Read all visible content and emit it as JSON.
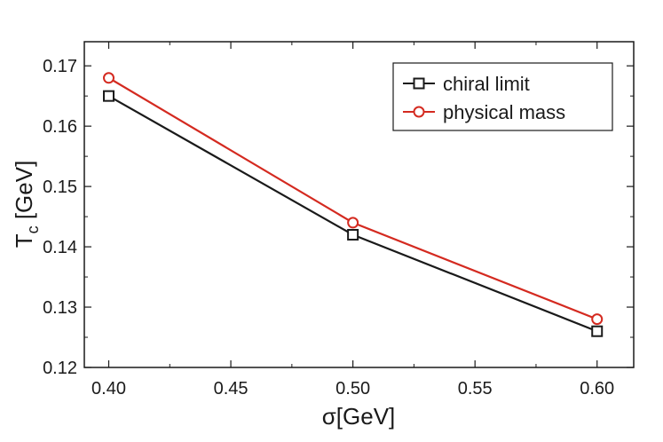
{
  "chart_data": {
    "type": "line",
    "xlabel": "σ[GeV]",
    "ylabel_main": "T",
    "ylabel_sub": "c",
    "ylabel_unit": " [GeV]",
    "xlim": [
      0.39,
      0.615
    ],
    "ylim": [
      0.12,
      0.174
    ],
    "xticks": [
      0.4,
      0.45,
      0.5,
      0.55,
      0.6
    ],
    "xtick_labels": [
      "0.40",
      "0.45",
      "0.50",
      "0.55",
      "0.60"
    ],
    "yticks": [
      0.12,
      0.13,
      0.14,
      0.15,
      0.16,
      0.17
    ],
    "ytick_labels": [
      "0.12",
      "0.13",
      "0.14",
      "0.15",
      "0.16",
      "0.17"
    ],
    "grid": false,
    "legend_position": "top-right",
    "series": [
      {
        "name": "chiral limit",
        "color": "#1a1a1a",
        "marker": "square",
        "x": [
          0.4,
          0.5,
          0.6
        ],
        "y": [
          0.165,
          0.142,
          0.126
        ]
      },
      {
        "name": "physical mass",
        "color": "#d42a20",
        "marker": "circle",
        "x": [
          0.4,
          0.5,
          0.6
        ],
        "y": [
          0.168,
          0.144,
          0.128
        ]
      }
    ]
  }
}
